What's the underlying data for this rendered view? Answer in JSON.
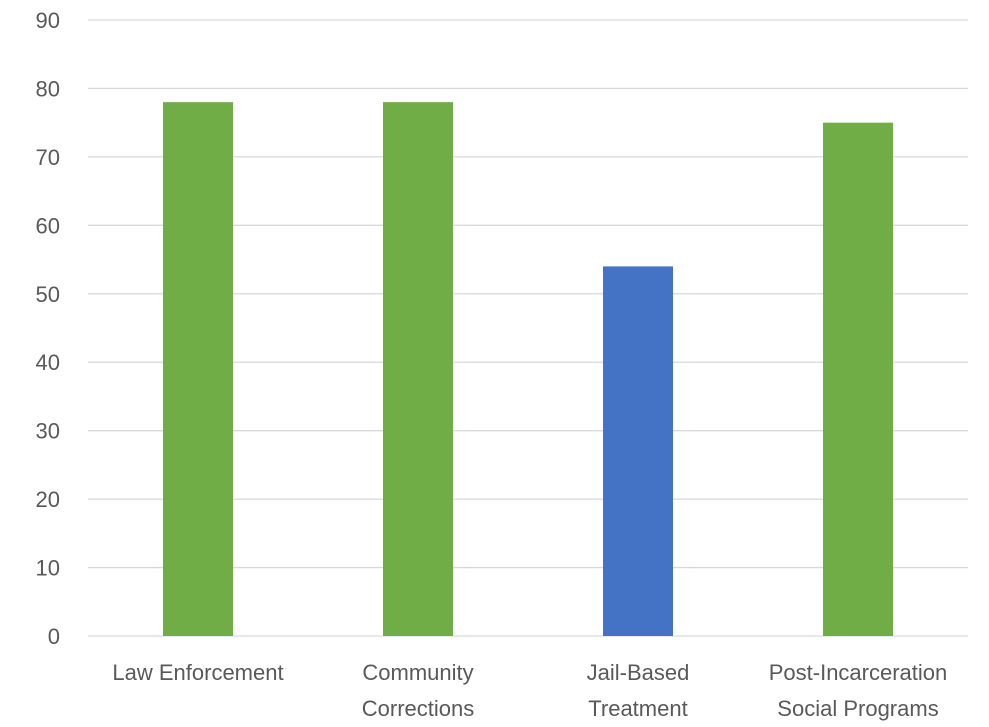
{
  "chart_data": {
    "type": "bar",
    "title": "",
    "xlabel": "",
    "ylabel": "",
    "categories": [
      [
        "Law Enforcement"
      ],
      [
        "Community",
        "Corrections"
      ],
      [
        "Jail-Based",
        "Treatment"
      ],
      [
        "Post-Incarceration",
        "Social Programs"
      ]
    ],
    "values": [
      78,
      78,
      54,
      75
    ],
    "bar_colors": [
      "#70ad47",
      "#70ad47",
      "#4472c4",
      "#70ad47"
    ],
    "ylim": [
      0,
      90
    ],
    "yticks": [
      0,
      10,
      20,
      30,
      40,
      50,
      60,
      70,
      80,
      90
    ],
    "grid": true,
    "legend": false
  }
}
